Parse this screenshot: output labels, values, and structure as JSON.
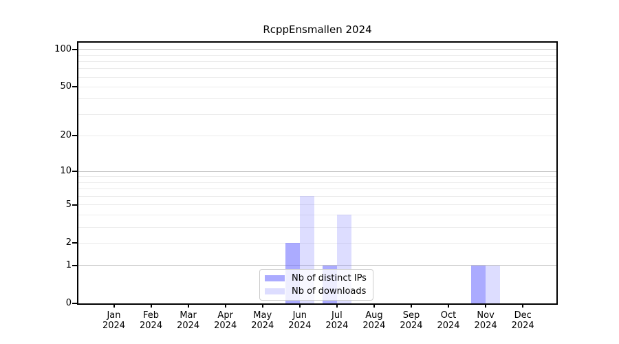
{
  "header": {
    "title": "RcppEnsmallen 2024"
  },
  "chart_data": {
    "type": "bar",
    "title": "RcppEnsmallen 2024",
    "categories": [
      "Jan 2024",
      "Feb 2024",
      "Mar 2024",
      "Apr 2024",
      "May 2024",
      "Jun 2024",
      "Jul 2024",
      "Aug 2024",
      "Sep 2024",
      "Oct 2024",
      "Nov 2024",
      "Dec 2024"
    ],
    "series": [
      {
        "name": "Nb of distinct IPs",
        "color": "rgba(102,102,255,0.55)",
        "values": [
          0,
          0,
          0,
          0,
          0,
          2,
          1,
          0,
          0,
          0,
          1,
          0
        ]
      },
      {
        "name": "Nb of downloads",
        "color": "rgba(102,102,255,0.22)",
        "values": [
          0,
          0,
          0,
          0,
          0,
          6,
          4,
          0,
          0,
          0,
          1,
          0
        ]
      }
    ],
    "xlabel": "",
    "ylabel": "",
    "yscale": "log1p",
    "ylim": [
      0,
      113
    ],
    "yticks": [
      0,
      1,
      2,
      5,
      10,
      20,
      50,
      100
    ],
    "minor_gridline_values": [
      3,
      4,
      6,
      7,
      8,
      9,
      30,
      40,
      60,
      70,
      80,
      90
    ],
    "decade_gridline_values": [
      1,
      10,
      100
    ],
    "grid": true,
    "legend_position": "bottom-center-inside",
    "colors": {
      "bar_distinct_ips": "rgba(102,102,255,0.55)",
      "bar_downloads": "rgba(102,102,255,0.22)",
      "grid_decade": "#bdbdbd",
      "grid_minor": "#ebebeb",
      "axis": "#000000",
      "background": "#ffffff"
    }
  }
}
